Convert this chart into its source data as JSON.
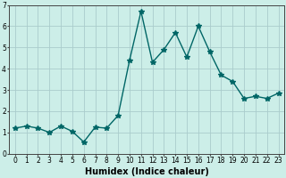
{
  "x": [
    0,
    1,
    2,
    3,
    4,
    5,
    6,
    7,
    8,
    9,
    10,
    11,
    12,
    13,
    14,
    15,
    16,
    17,
    18,
    19,
    20,
    21,
    22,
    23
  ],
  "y": [
    1.2,
    1.3,
    1.2,
    1.0,
    1.3,
    1.05,
    0.55,
    1.25,
    1.2,
    1.8,
    4.4,
    6.7,
    4.3,
    4.9,
    5.7,
    4.55,
    6.0,
    4.8,
    3.7,
    3.4,
    2.6,
    2.7,
    2.6,
    2.85
  ],
  "line_color": "#006666",
  "marker": "*",
  "marker_size": 4,
  "bg_color": "#cceee8",
  "grid_color": "#aacccc",
  "xlabel": "Humidex (Indice chaleur)",
  "xlabel_fontsize": 7,
  "xlim": [
    -0.5,
    23.5
  ],
  "ylim": [
    0,
    7
  ],
  "yticks": [
    0,
    1,
    2,
    3,
    4,
    5,
    6,
    7
  ],
  "xticks": [
    0,
    1,
    2,
    3,
    4,
    5,
    6,
    7,
    8,
    9,
    10,
    11,
    12,
    13,
    14,
    15,
    16,
    17,
    18,
    19,
    20,
    21,
    22,
    23
  ],
  "tick_fontsize": 5.5,
  "linewidth": 1.0
}
